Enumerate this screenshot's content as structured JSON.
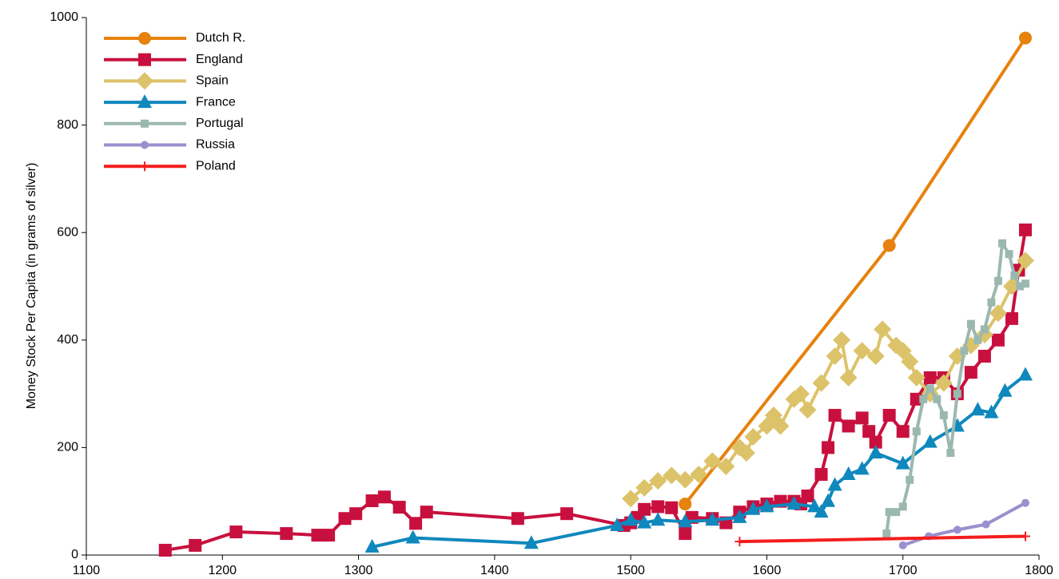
{
  "chart_data": {
    "type": "line",
    "y_label": "Money Stock Per Capita (in grams of silver)",
    "xlim": [
      1100,
      1800
    ],
    "xticks": [
      1100,
      1200,
      1300,
      1400,
      1500,
      1600,
      1700,
      1800
    ],
    "ylim": [
      0,
      1000
    ],
    "yticks": [
      0,
      200,
      400,
      600,
      800,
      1000
    ],
    "grid": false,
    "legend": "upper left",
    "series": [
      {
        "name": "Dutch R.",
        "color": "#e6820e",
        "marker": "circle",
        "x": [
          1540,
          1690,
          1790
        ],
        "values": [
          95,
          576,
          962
        ]
      },
      {
        "name": "England",
        "color": "#c8103e",
        "marker": "square",
        "x": [
          1158,
          1180,
          1210,
          1247,
          1270,
          1278,
          1290,
          1298,
          1310,
          1319,
          1330,
          1342,
          1350,
          1417,
          1453,
          1495,
          1500,
          1505,
          1510,
          1520,
          1530,
          1540,
          1545,
          1560,
          1570,
          1580,
          1590,
          1600,
          1610,
          1620,
          1625,
          1630,
          1640,
          1645,
          1650,
          1660,
          1670,
          1675,
          1680,
          1690,
          1700,
          1710,
          1720,
          1730,
          1740,
          1750,
          1760,
          1770,
          1780,
          1785,
          1790
        ],
        "values": [
          9,
          18,
          43,
          40,
          37,
          37,
          68,
          77,
          101,
          108,
          89,
          59,
          80,
          68,
          77,
          55,
          60,
          70,
          85,
          90,
          88,
          40,
          70,
          68,
          60,
          80,
          90,
          95,
          100,
          100,
          95,
          110,
          150,
          200,
          260,
          240,
          255,
          230,
          210,
          260,
          230,
          290,
          330,
          330,
          300,
          340,
          370,
          400,
          440,
          530,
          605
        ]
      },
      {
        "name": "Spain",
        "color": "#dcc36a",
        "marker": "diamond",
        "x": [
          1500,
          1510,
          1520,
          1530,
          1540,
          1550,
          1560,
          1570,
          1580,
          1585,
          1590,
          1600,
          1605,
          1610,
          1620,
          1625,
          1630,
          1640,
          1650,
          1655,
          1660,
          1670,
          1680,
          1685,
          1695,
          1700,
          1705,
          1710,
          1720,
          1730,
          1740,
          1750,
          1760,
          1770,
          1780,
          1790
        ],
        "values": [
          105,
          125,
          138,
          148,
          140,
          150,
          175,
          165,
          200,
          190,
          220,
          240,
          260,
          240,
          290,
          300,
          270,
          320,
          370,
          400,
          330,
          380,
          370,
          420,
          390,
          380,
          360,
          330,
          300,
          320,
          370,
          390,
          410,
          450,
          500,
          548
        ]
      },
      {
        "name": "France",
        "color": "#0f88bd",
        "marker": "triangle",
        "x": [
          1310,
          1340,
          1427,
          1490,
          1500,
          1510,
          1520,
          1540,
          1560,
          1580,
          1590,
          1600,
          1620,
          1635,
          1640,
          1645,
          1650,
          1660,
          1670,
          1680,
          1700,
          1720,
          1740,
          1755,
          1765,
          1775,
          1790
        ],
        "values": [
          15,
          32,
          22,
          55,
          65,
          60,
          65,
          62,
          65,
          70,
          85,
          90,
          95,
          90,
          80,
          100,
          130,
          150,
          160,
          190,
          170,
          210,
          240,
          270,
          265,
          305,
          335
        ]
      },
      {
        "name": "Portugal",
        "color": "#9bb8b0",
        "marker": "smallsquare",
        "x": [
          1688,
          1690,
          1695,
          1700,
          1705,
          1710,
          1715,
          1720,
          1725,
          1730,
          1735,
          1740,
          1745,
          1750,
          1755,
          1760,
          1765,
          1770,
          1773,
          1778,
          1782,
          1786,
          1790
        ],
        "values": [
          40,
          80,
          80,
          90,
          140,
          230,
          290,
          310,
          290,
          260,
          190,
          300,
          380,
          430,
          400,
          420,
          470,
          510,
          580,
          560,
          520,
          500,
          505
        ]
      },
      {
        "name": "Russia",
        "color": "#9b8fce",
        "marker": "smallcircle",
        "x": [
          1700,
          1719,
          1740,
          1761,
          1790
        ],
        "values": [
          18,
          35,
          47,
          57,
          97
        ]
      },
      {
        "name": "Poland",
        "color": "#f51d1d",
        "marker": "plus",
        "x": [
          1580,
          1790
        ],
        "values": [
          25,
          35
        ]
      }
    ]
  }
}
